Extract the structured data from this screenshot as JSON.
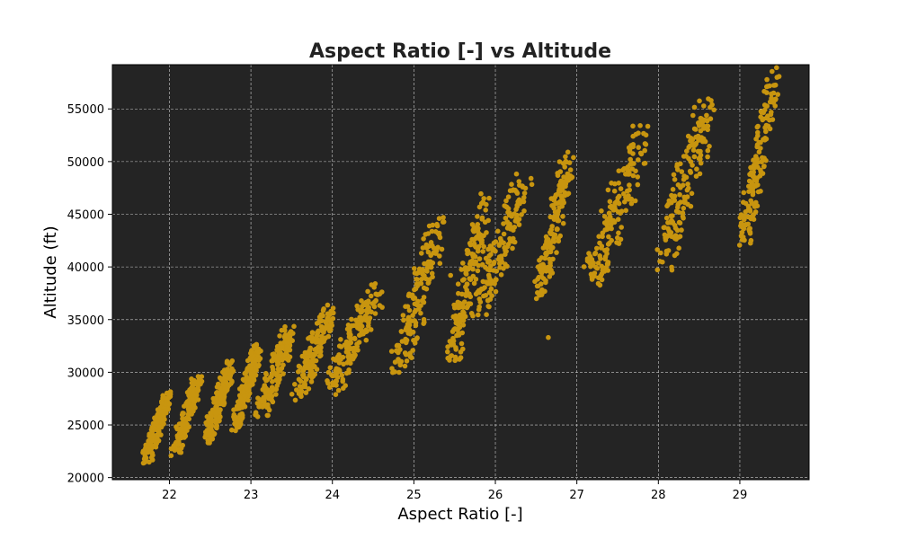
{
  "chart_data": {
    "type": "scatter",
    "title": "Aspect Ratio [-] vs Altitude",
    "xlabel": "Aspect Ratio [-]",
    "ylabel": "Altitude (ft)",
    "xlim": [
      21.3,
      29.85
    ],
    "ylim": [
      19800,
      59200
    ],
    "xticks": [
      22,
      23,
      24,
      25,
      26,
      27,
      28,
      29
    ],
    "yticks": [
      20000,
      25000,
      30000,
      35000,
      40000,
      45000,
      50000,
      55000
    ],
    "grid": true,
    "background": "#242424",
    "marker_color": "#c8950f",
    "grid_color": "#cccccc",
    "clusters": [
      {
        "x": [
          21.72,
          21.98
        ],
        "y": [
          21700,
          27800
        ]
      },
      {
        "x": [
          22.08,
          22.35
        ],
        "y": [
          22700,
          29200
        ]
      },
      {
        "x": [
          22.47,
          22.75
        ],
        "y": [
          23900,
          30600
        ]
      },
      {
        "x": [
          22.82,
          23.08
        ],
        "y": [
          25000,
          32300
        ]
      },
      {
        "x": [
          23.12,
          23.48
        ],
        "y": [
          26200,
          34000
        ]
      },
      {
        "x": [
          23.55,
          23.95
        ],
        "y": [
          27600,
          35700
        ]
      },
      {
        "x": [
          24.0,
          24.55
        ],
        "y": [
          28800,
          37800
        ]
      },
      {
        "x": [
          24.8,
          25.3
        ],
        "y": [
          30300,
          43700
        ]
      },
      {
        "x": [
          25.48,
          25.85
        ],
        "y": [
          31800,
          45600
        ]
      },
      {
        "x": [
          25.8,
          26.35
        ],
        "y": [
          36200,
          47600
        ]
      },
      {
        "x": [
          26.55,
          26.9
        ],
        "y": [
          37800,
          50000
        ]
      },
      {
        "x": [
          27.2,
          27.8
        ],
        "y": [
          39200,
          52300
        ]
      },
      {
        "x": [
          28.05,
          28.6
        ],
        "y": [
          40800,
          54800
        ]
      },
      {
        "x": [
          29.05,
          29.42
        ],
        "y": [
          42800,
          57600
        ]
      }
    ],
    "outliers": [
      {
        "x": 26.65,
        "y": 33300
      },
      {
        "x": 25.45,
        "y": 39200
      }
    ]
  }
}
